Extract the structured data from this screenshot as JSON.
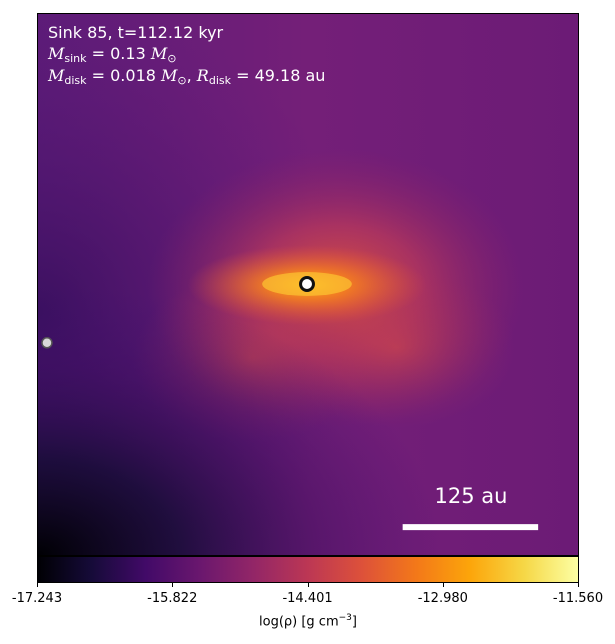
{
  "chart_data": {
    "type": "heatmap",
    "title_line1": "Sink 85, t=112.12 kyr",
    "mass_sink": {
      "symbol": "M",
      "subscript": "sink",
      "expr": "= 0.13",
      "unit": "M",
      "unit_sub": "⊙"
    },
    "disk": {
      "mass_symbol": "M",
      "mass_subscript": "disk",
      "mass_expr": "= 0.018",
      "mass_unit": "M",
      "mass_unit_sub": "⊙",
      "radius_symbol": "R",
      "radius_subscript": "disk",
      "radius_expr": "= 49.18",
      "radius_unit": "au"
    },
    "scale_bar": "125 au",
    "colorbar": {
      "title_prefix": "log(ρ) [g cm",
      "title_exp": "−3",
      "title_suffix": "]",
      "tick_labels": [
        "-17.243",
        "-15.822",
        "-14.401",
        "-12.980",
        "-11.560"
      ],
      "vmin": -17.243,
      "vmax": -11.56,
      "colormap": "inferno-like"
    },
    "sinks": [
      {
        "name": "Sink 85",
        "role": "primary"
      },
      {
        "name": "companion sink",
        "role": "secondary"
      }
    ]
  }
}
